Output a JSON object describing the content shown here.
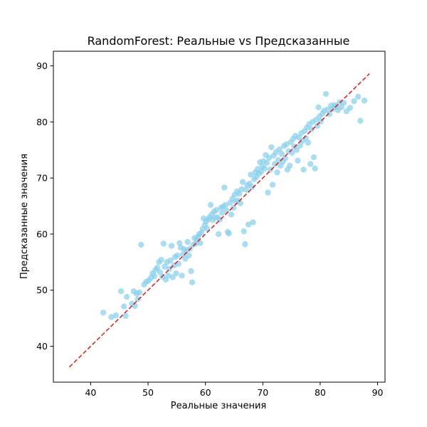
{
  "chart_data": {
    "type": "scatter",
    "title": "RandomForest: Реальные vs Предсказанные",
    "xlabel": "Реальные значения",
    "ylabel": "Предсказанные значения",
    "xlim": [
      33.5,
      91.3
    ],
    "ylim": [
      33.6,
      92.6
    ],
    "xticks": [
      40,
      50,
      60,
      70,
      80,
      90
    ],
    "yticks": [
      40,
      50,
      60,
      70,
      80,
      90
    ],
    "grid": false,
    "point_color": "#87ceeb",
    "point_alpha": 0.7,
    "reference_line": {
      "from": [
        36.3,
        36.3
      ],
      "to": [
        88.6,
        88.6
      ],
      "color": "#d62728",
      "style": "dashed"
    },
    "series": [
      {
        "points": [
          [
            42.2,
            46.0
          ],
          [
            43.6,
            45.2
          ],
          [
            44.4,
            45.5
          ],
          [
            45.3,
            49.8
          ],
          [
            45.8,
            47.1
          ],
          [
            46.1,
            45.4
          ],
          [
            46.3,
            48.8
          ],
          [
            47.2,
            47.6
          ],
          [
            47.5,
            49.8
          ],
          [
            47.7,
            47.2
          ],
          [
            48.0,
            49.4
          ],
          [
            48.2,
            48.4
          ],
          [
            48.5,
            49.6
          ],
          [
            48.8,
            58.1
          ],
          [
            49.3,
            51.0
          ],
          [
            49.7,
            51.5
          ],
          [
            50.1,
            51.7
          ],
          [
            50.5,
            52.2
          ],
          [
            50.8,
            53.0
          ],
          [
            51.1,
            52.5
          ],
          [
            51.3,
            53.6
          ],
          [
            51.6,
            54.0
          ],
          [
            51.9,
            55.0
          ],
          [
            52.1,
            53.2
          ],
          [
            52.3,
            55.4
          ],
          [
            52.5,
            52.4
          ],
          [
            52.7,
            58.3
          ],
          [
            52.9,
            54.2
          ],
          [
            53.1,
            51.9
          ],
          [
            53.3,
            55.0
          ],
          [
            53.5,
            52.6
          ],
          [
            53.7,
            53.8
          ],
          [
            53.9,
            55.3
          ],
          [
            54.1,
            57.9
          ],
          [
            54.3,
            52.3
          ],
          [
            54.5,
            54.4
          ],
          [
            54.7,
            55.9
          ],
          [
            54.9,
            53.0
          ],
          [
            55.1,
            56.2
          ],
          [
            55.3,
            54.7
          ],
          [
            55.5,
            58.4
          ],
          [
            55.7,
            57.6
          ],
          [
            55.9,
            52.6
          ],
          [
            56.1,
            56.4
          ],
          [
            56.3,
            57.3
          ],
          [
            56.5,
            55.6
          ],
          [
            56.7,
            57.1
          ],
          [
            56.9,
            58.6
          ],
          [
            57.1,
            56.2
          ],
          [
            57.3,
            57.4
          ],
          [
            57.5,
            53.4
          ],
          [
            57.7,
            51.4
          ],
          [
            57.9,
            58.1
          ],
          [
            58.1,
            59.3
          ],
          [
            58.3,
            58.3
          ],
          [
            58.5,
            59.0
          ],
          [
            58.7,
            59.5
          ],
          [
            58.9,
            60.0
          ],
          [
            59.1,
            58.4
          ],
          [
            59.3,
            60.2
          ],
          [
            59.5,
            60.9
          ],
          [
            59.7,
            62.8
          ],
          [
            59.9,
            61.6
          ],
          [
            60.1,
            62.2
          ],
          [
            60.3,
            61.0
          ],
          [
            60.5,
            62.6
          ],
          [
            60.7,
            63.0
          ],
          [
            60.9,
            65.2
          ],
          [
            61.1,
            63.5
          ],
          [
            61.3,
            62.5
          ],
          [
            61.5,
            64.0
          ],
          [
            61.7,
            62.9
          ],
          [
            61.9,
            64.3
          ],
          [
            62.1,
            63.0
          ],
          [
            62.3,
            60.0
          ],
          [
            62.5,
            62.6
          ],
          [
            62.7,
            64.7
          ],
          [
            62.9,
            63.8
          ],
          [
            63.1,
            64.9
          ],
          [
            63.3,
            68.3
          ],
          [
            63.5,
            65.2
          ],
          [
            63.7,
            64.2
          ],
          [
            63.9,
            60.4
          ],
          [
            64.1,
            60.1
          ],
          [
            64.3,
            65.6
          ],
          [
            64.5,
            63.5
          ],
          [
            64.7,
            66.3
          ],
          [
            64.9,
            64.7
          ],
          [
            65.1,
            67.0
          ],
          [
            65.3,
            65.8
          ],
          [
            65.5,
            67.6
          ],
          [
            65.7,
            66.0
          ],
          [
            65.9,
            67.2
          ],
          [
            66.1,
            65.5
          ],
          [
            66.3,
            68.0
          ],
          [
            66.5,
            69.3
          ],
          [
            66.7,
            60.5
          ],
          [
            66.9,
            58.2
          ],
          [
            67.1,
            67.9
          ],
          [
            67.3,
            68.7
          ],
          [
            67.5,
            61.7
          ],
          [
            67.7,
            69.0
          ],
          [
            67.9,
            70.6
          ],
          [
            68.1,
            68.4
          ],
          [
            68.3,
            62.1
          ],
          [
            68.5,
            69.8
          ],
          [
            68.7,
            71.0
          ],
          [
            68.9,
            70.2
          ],
          [
            69.1,
            71.6
          ],
          [
            69.3,
            70.8
          ],
          [
            69.5,
            72.8
          ],
          [
            69.7,
            71.1
          ],
          [
            69.9,
            72.0
          ],
          [
            70.1,
            73.0
          ],
          [
            70.3,
            71.7
          ],
          [
            70.5,
            74.1
          ],
          [
            70.7,
            72.7
          ],
          [
            70.9,
            67.4
          ],
          [
            71.1,
            73.6
          ],
          [
            71.3,
            71.5
          ],
          [
            71.5,
            75.5
          ],
          [
            71.7,
            68.8
          ],
          [
            71.9,
            74.0
          ],
          [
            72.1,
            72.5
          ],
          [
            72.3,
            74.6
          ],
          [
            72.5,
            71.0
          ],
          [
            72.7,
            73.2
          ],
          [
            72.9,
            75.1
          ],
          [
            73.1,
            72.2
          ],
          [
            73.3,
            74.3
          ],
          [
            73.5,
            72.9
          ],
          [
            73.7,
            75.7
          ],
          [
            73.9,
            73.5
          ],
          [
            74.1,
            76.0
          ],
          [
            74.3,
            71.5
          ],
          [
            74.5,
            74.8
          ],
          [
            74.7,
            72.2
          ],
          [
            74.9,
            76.4
          ],
          [
            75.1,
            74.5
          ],
          [
            75.3,
            77.0
          ],
          [
            75.5,
            75.6
          ],
          [
            75.7,
            77.5
          ],
          [
            75.9,
            75.0
          ],
          [
            76.1,
            73.1
          ],
          [
            76.3,
            77.2
          ],
          [
            76.5,
            75.8
          ],
          [
            76.7,
            78.0
          ],
          [
            76.9,
            76.6
          ],
          [
            77.1,
            71.5
          ],
          [
            77.3,
            78.4
          ],
          [
            77.5,
            77.1
          ],
          [
            77.7,
            79.0
          ],
          [
            77.9,
            76.3
          ],
          [
            78.1,
            79.6
          ],
          [
            78.3,
            72.5
          ],
          [
            78.5,
            78.7
          ],
          [
            78.7,
            80.0
          ],
          [
            78.9,
            73.7
          ],
          [
            79.1,
            71.7
          ],
          [
            79.3,
            80.4
          ],
          [
            79.5,
            79.3
          ],
          [
            79.7,
            82.6
          ],
          [
            79.9,
            81.0
          ],
          [
            80.1,
            80.1
          ],
          [
            80.4,
            81.5
          ],
          [
            80.7,
            82.0
          ],
          [
            81.0,
            85.0
          ],
          [
            81.3,
            82.2
          ],
          [
            81.6,
            81.4
          ],
          [
            81.9,
            82.9
          ],
          [
            82.2,
            82.3
          ],
          [
            82.5,
            83.0
          ],
          [
            82.8,
            82.7
          ],
          [
            83.1,
            82.1
          ],
          [
            83.4,
            83.5
          ],
          [
            83.7,
            82.6
          ],
          [
            84.1,
            83.4
          ],
          [
            84.6,
            81.9
          ],
          [
            85.2,
            82.5
          ],
          [
            85.9,
            83.7
          ],
          [
            86.6,
            84.5
          ],
          [
            87.0,
            80.2
          ],
          [
            87.7,
            83.8
          ]
        ]
      }
    ]
  }
}
